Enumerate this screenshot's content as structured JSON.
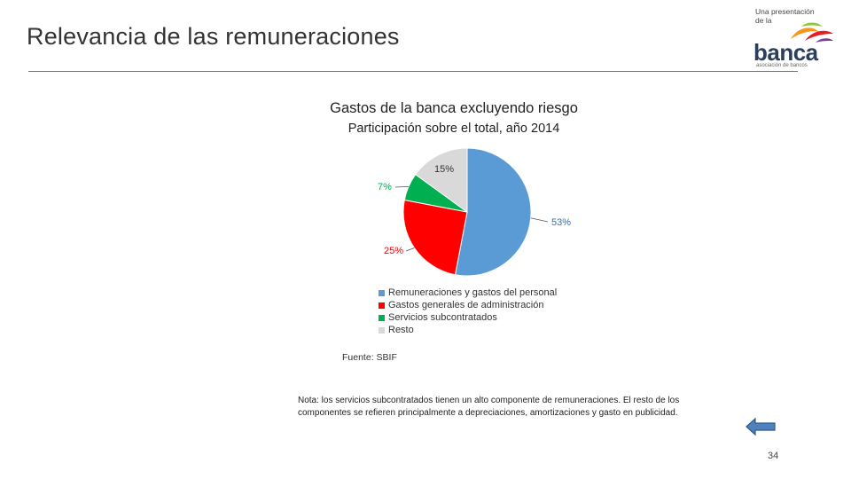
{
  "slide": {
    "title": "Relevancia de las remuneraciones",
    "page_number": "34",
    "source": "Fuente: SBIF",
    "note": "Nota: los servicios subcontratados tienen un alto componente de remuneraciones. El resto de los componentes se refieren principalmente a depreciaciones, amortizaciones y gasto en publicidad."
  },
  "logo": {
    "tagline": "Una presentación\nde la",
    "word": "banca",
    "sub": "asociación de bancos"
  },
  "chart_data": {
    "type": "pie",
    "title": "Gastos de la banca excluyendo riesgo",
    "subtitle": "Participación sobre el total, año 2014",
    "categories": [
      "Remuneraciones y gastos del personal",
      "Gastos generales de administración",
      "Servicios subcontratados",
      "Resto"
    ],
    "values": [
      53,
      25,
      7,
      15
    ],
    "labels": [
      "53%",
      "25%",
      "7%",
      "15%"
    ],
    "colors": [
      "#5b9bd5",
      "#ff0000",
      "#00b050",
      "#d9d9d9"
    ],
    "legend_position": "bottom"
  },
  "icons": {
    "nav": "arrow-left-icon"
  }
}
